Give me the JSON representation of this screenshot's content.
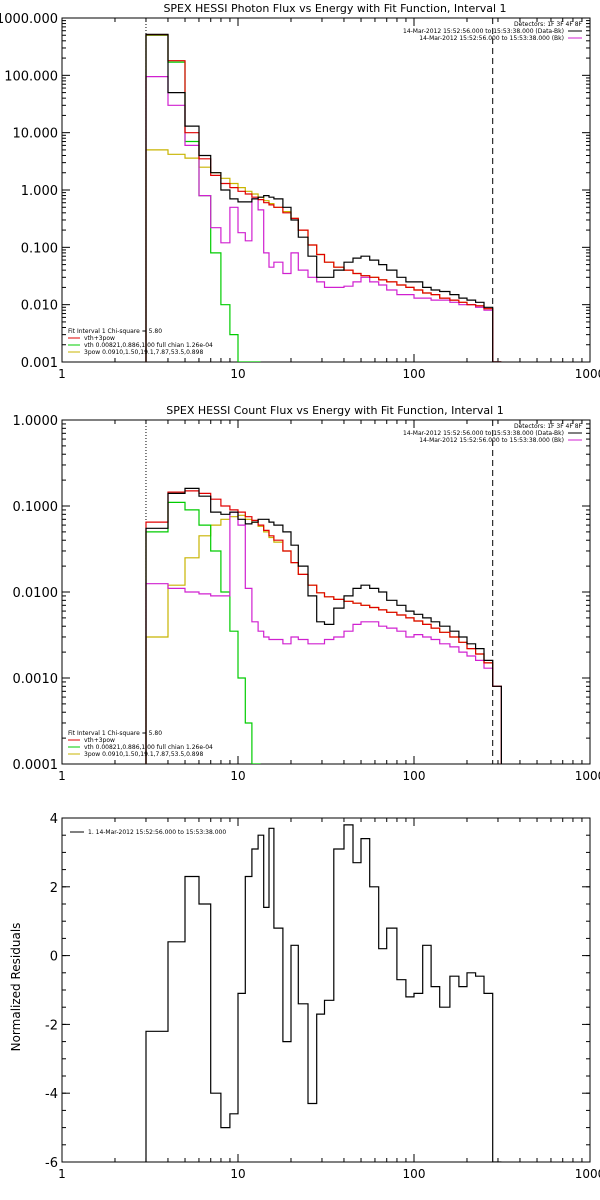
{
  "chart_data": [
    {
      "type": "line",
      "title": "SPEX HESSI Photon Flux vs Energy with Fit Function, Interval 1",
      "xlabel": "",
      "ylabel": "",
      "x_scale": "log",
      "y_scale": "log",
      "xlim": [
        1,
        1000
      ],
      "ylim": [
        0.001,
        1000
      ],
      "x_ticks": [
        "1",
        "10",
        "100",
        "1000"
      ],
      "y_ticks": [
        "0.001",
        "0.010",
        "0.100",
        "1.000",
        "10.000",
        "100.000",
        "1000.000"
      ],
      "y_tick_values": [
        0.001,
        0.01,
        0.1,
        1,
        10,
        100,
        1000
      ],
      "legend_top": [
        "Detectors: 1F 3F 4F 8F",
        "14-Mar-2012 15:52:56.000 to 15:53:38.000 (Data-Bk)",
        "14-Mar-2012 15:52:56.000 to 15:53:38.000 (Bk)"
      ],
      "legend_top_colors": [
        "",
        "#000000",
        "#d020d0"
      ],
      "legend_bottom": [
        "Fit Interval 1   Chi-square = 5.80",
        "vth+3pow",
        "vth 0.00821,0.886,1.00  full chian 1.26e-04",
        "3pow 0.0910,1.50,19.1,7.87,53.5,0.898"
      ],
      "legend_bottom_colors": [
        "",
        "#e00000",
        "#00cc00",
        "#c8b400"
      ],
      "fit_range": [
        3,
        280
      ],
      "series": [
        {
          "name": "Data-Bk",
          "color": "#000000",
          "x": [
            3,
            4,
            5,
            6,
            7,
            8,
            9,
            10,
            11,
            12,
            13,
            14,
            15,
            16,
            18,
            20,
            22,
            25,
            28,
            31,
            35,
            40,
            45,
            50,
            56,
            63,
            70,
            80,
            90,
            100,
            112,
            125,
            140,
            160,
            180,
            200,
            224,
            250,
            280
          ],
          "y": [
            520,
            50,
            13,
            4,
            2.0,
            1.0,
            0.7,
            0.62,
            0.62,
            0.7,
            0.75,
            0.8,
            0.75,
            0.7,
            0.5,
            0.3,
            0.15,
            0.07,
            0.03,
            0.03,
            0.04,
            0.055,
            0.065,
            0.07,
            0.06,
            0.05,
            0.04,
            0.03,
            0.025,
            0.025,
            0.02,
            0.018,
            0.017,
            0.015,
            0.013,
            0.012,
            0.011,
            0.009,
            0.001
          ]
        },
        {
          "name": "Bk",
          "color": "#d020d0",
          "x": [
            3,
            4,
            5,
            6,
            7,
            8,
            9,
            10,
            11,
            12,
            13,
            14,
            15,
            16,
            18,
            20,
            22,
            25,
            28,
            31,
            35,
            40,
            45,
            50,
            56,
            63,
            70,
            80,
            90,
            100,
            112,
            125,
            140,
            160,
            180,
            200,
            224,
            250,
            280
          ],
          "y": [
            95,
            30,
            6,
            0.8,
            0.22,
            0.12,
            0.5,
            0.18,
            0.13,
            0.7,
            0.45,
            0.08,
            0.045,
            0.055,
            0.035,
            0.08,
            0.04,
            0.03,
            0.025,
            0.02,
            0.02,
            0.021,
            0.025,
            0.03,
            0.025,
            0.022,
            0.018,
            0.015,
            0.015,
            0.013,
            0.013,
            0.012,
            0.012,
            0.011,
            0.01,
            0.01,
            0.009,
            0.008,
            0.001
          ]
        },
        {
          "name": "vth+3pow",
          "color": "#e00000",
          "x": [
            3,
            4,
            5,
            6,
            7,
            8,
            9,
            10,
            11,
            12,
            13,
            14,
            15,
            16,
            18,
            20,
            22,
            25,
            28,
            31,
            35,
            40,
            45,
            50,
            56,
            63,
            70,
            80,
            90,
            100,
            112,
            125,
            140,
            160,
            180,
            200,
            224,
            250,
            280
          ],
          "y": [
            510,
            180,
            10,
            3.5,
            1.8,
            1.3,
            1.1,
            0.95,
            0.85,
            0.75,
            0.68,
            0.6,
            0.55,
            0.5,
            0.4,
            0.32,
            0.2,
            0.11,
            0.075,
            0.055,
            0.045,
            0.04,
            0.035,
            0.032,
            0.03,
            0.027,
            0.025,
            0.022,
            0.02,
            0.018,
            0.016,
            0.015,
            0.013,
            0.012,
            0.011,
            0.01,
            0.0095,
            0.0085,
            0.001
          ]
        },
        {
          "name": "vth",
          "color": "#00cc00",
          "x": [
            3,
            4,
            5,
            6,
            7,
            8,
            9,
            10,
            11,
            12
          ],
          "y": [
            500,
            170,
            7,
            0.8,
            0.08,
            0.01,
            0.003,
            0.001,
            0.001,
            0.001
          ]
        },
        {
          "name": "3pow",
          "color": "#c8b400",
          "x": [
            3,
            4,
            5,
            6,
            7,
            8,
            9,
            10,
            11,
            12,
            13,
            14,
            15,
            16,
            18,
            20,
            22,
            25,
            28,
            31,
            35,
            40,
            45,
            50,
            56,
            63,
            70,
            80,
            90,
            100,
            112,
            125,
            140,
            160,
            180,
            200,
            224,
            250,
            280
          ],
          "y": [
            5,
            4.2,
            3.6,
            2.5,
            2.0,
            1.6,
            1.3,
            1.1,
            0.95,
            0.85,
            0.75,
            0.65,
            0.58,
            0.5,
            0.42,
            0.32,
            0.2,
            0.11,
            0.075,
            0.055,
            0.045,
            0.04,
            0.035,
            0.032,
            0.03,
            0.027,
            0.025,
            0.022,
            0.02,
            0.018,
            0.016,
            0.015,
            0.013,
            0.012,
            0.011,
            0.01,
            0.0095,
            0.0085,
            0.001
          ]
        }
      ]
    },
    {
      "type": "line",
      "title": "SPEX HESSI Count Flux vs Energy with Fit Function, Interval 1",
      "xlabel": "",
      "ylabel": "",
      "x_scale": "log",
      "y_scale": "log",
      "xlim": [
        1,
        1000
      ],
      "ylim": [
        0.0001,
        1
      ],
      "x_ticks": [
        "1",
        "10",
        "100",
        "1000"
      ],
      "y_ticks": [
        "0.0001",
        "0.0010",
        "0.0100",
        "0.1000",
        "1.0000"
      ],
      "y_tick_values": [
        0.0001,
        0.001,
        0.01,
        0.1,
        1
      ],
      "legend_top": [
        "Detectors: 1F 3F 4F 8F",
        "14-Mar-2012 15:52:56.000 to 15:53:38.000 (Data-Bk)",
        "14-Mar-2012 15:52:56.000 to 15:53:38.000 (Bk)"
      ],
      "legend_top_colors": [
        "",
        "#000000",
        "#d020d0"
      ],
      "legend_bottom": [
        "Fit Interval 1   Chi-square = 5.80",
        "vth+3pow",
        "vth 0.00821,0.886,1.00  full chian 1.26e-04",
        "3pow 0.0910,1.50,19.1,7.87,53.5,0.898"
      ],
      "legend_bottom_colors": [
        "",
        "#e00000",
        "#00cc00",
        "#c8b400"
      ],
      "fit_range": [
        3,
        280
      ],
      "series": [
        {
          "name": "Data-Bk",
          "color": "#000000",
          "x": [
            3,
            4,
            5,
            6,
            7,
            8,
            9,
            10,
            11,
            12,
            13,
            14,
            15,
            16,
            18,
            20,
            22,
            25,
            28,
            31,
            35,
            40,
            45,
            50,
            56,
            63,
            70,
            80,
            90,
            100,
            112,
            125,
            140,
            160,
            180,
            200,
            224,
            250,
            280
          ],
          "y": [
            0.055,
            0.14,
            0.16,
            0.13,
            0.085,
            0.08,
            0.085,
            0.07,
            0.062,
            0.065,
            0.07,
            0.07,
            0.065,
            0.06,
            0.05,
            0.035,
            0.02,
            0.009,
            0.0045,
            0.0042,
            0.0065,
            0.009,
            0.011,
            0.012,
            0.011,
            0.01,
            0.008,
            0.007,
            0.006,
            0.0055,
            0.005,
            0.0045,
            0.004,
            0.0035,
            0.003,
            0.0025,
            0.0022,
            0.0016,
            0.0008
          ]
        },
        {
          "name": "Bk",
          "color": "#d020d0",
          "x": [
            3,
            4,
            5,
            6,
            7,
            8,
            9,
            10,
            11,
            12,
            13,
            14,
            15,
            16,
            18,
            20,
            22,
            25,
            28,
            31,
            35,
            40,
            45,
            50,
            56,
            63,
            70,
            80,
            90,
            100,
            112,
            125,
            140,
            160,
            180,
            200,
            224,
            250,
            280
          ],
          "y": [
            0.0125,
            0.011,
            0.01,
            0.0095,
            0.009,
            0.009,
            0.085,
            0.06,
            0.011,
            0.0045,
            0.0035,
            0.003,
            0.0028,
            0.0028,
            0.0025,
            0.003,
            0.0028,
            0.0025,
            0.0025,
            0.0028,
            0.003,
            0.0035,
            0.0042,
            0.0045,
            0.0045,
            0.004,
            0.0038,
            0.0035,
            0.003,
            0.0032,
            0.003,
            0.0028,
            0.0025,
            0.0023,
            0.002,
            0.0018,
            0.0016,
            0.0013,
            0.0008
          ]
        },
        {
          "name": "vth+3pow",
          "color": "#e00000",
          "x": [
            3,
            4,
            5,
            6,
            7,
            8,
            9,
            10,
            11,
            12,
            13,
            14,
            15,
            16,
            18,
            20,
            22,
            25,
            28,
            31,
            35,
            40,
            45,
            50,
            56,
            63,
            70,
            80,
            90,
            100,
            112,
            125,
            140,
            160,
            180,
            200,
            224,
            250,
            280
          ],
          "y": [
            0.065,
            0.145,
            0.15,
            0.14,
            0.12,
            0.1,
            0.09,
            0.085,
            0.075,
            0.068,
            0.06,
            0.052,
            0.045,
            0.04,
            0.03,
            0.022,
            0.016,
            0.012,
            0.0098,
            0.0088,
            0.0082,
            0.0078,
            0.0074,
            0.007,
            0.0066,
            0.0062,
            0.0058,
            0.0054,
            0.005,
            0.0046,
            0.0042,
            0.0038,
            0.0034,
            0.003,
            0.0026,
            0.0022,
            0.0019,
            0.0015,
            0.0008
          ]
        },
        {
          "name": "vth",
          "color": "#00cc00",
          "x": [
            3,
            4,
            5,
            6,
            7,
            8,
            9,
            10,
            11,
            12
          ],
          "y": [
            0.05,
            0.11,
            0.09,
            0.06,
            0.03,
            0.01,
            0.0035,
            0.001,
            0.0003,
            0.0001
          ]
        },
        {
          "name": "3pow",
          "color": "#c8b400",
          "x": [
            3,
            4,
            5,
            6,
            7,
            8,
            9,
            10,
            11,
            12,
            13,
            14,
            15,
            16,
            18,
            20,
            22,
            25,
            28,
            31,
            35,
            40,
            45,
            50,
            56,
            63,
            70,
            80,
            90,
            100,
            112,
            125,
            140,
            160,
            180,
            200,
            224,
            250,
            280
          ],
          "y": [
            0.003,
            0.012,
            0.025,
            0.045,
            0.06,
            0.07,
            0.075,
            0.078,
            0.07,
            0.065,
            0.058,
            0.05,
            0.043,
            0.038,
            0.03,
            0.022,
            0.016,
            0.012,
            0.0098,
            0.0088,
            0.0082,
            0.0078,
            0.0074,
            0.007,
            0.0066,
            0.0062,
            0.0058,
            0.0054,
            0.005,
            0.0046,
            0.0042,
            0.0038,
            0.0034,
            0.003,
            0.0026,
            0.0022,
            0.0019,
            0.0015,
            0.0008
          ]
        }
      ]
    },
    {
      "type": "line",
      "title": "",
      "xlabel": "",
      "ylabel": "Normalized Residuals",
      "x_scale": "log",
      "y_scale": "linear",
      "xlim": [
        1,
        1000
      ],
      "ylim": [
        -6,
        4
      ],
      "x_ticks": [
        "1",
        "10",
        "100",
        "1000"
      ],
      "y_ticks": [
        "-6",
        "-4",
        "-2",
        "0",
        "2",
        "4"
      ],
      "y_tick_values": [
        -6,
        -4,
        -2,
        0,
        2,
        4
      ],
      "legend_top": [
        "1. 14-Mar-2012 15:52:56.000 to 15:53:38.000"
      ],
      "legend_top_colors": [
        "#000000"
      ],
      "legend_bottom": [],
      "legend_bottom_colors": [],
      "fit_range": [],
      "series": [
        {
          "name": "",
          "color": "#000000",
          "x": [
            3,
            4,
            5,
            6,
            7,
            8,
            9,
            10,
            11,
            12,
            13,
            14,
            15,
            16,
            18,
            20,
            22,
            25,
            28,
            31,
            35,
            40,
            45,
            50,
            56,
            63,
            70,
            80,
            90,
            100,
            112,
            125,
            140,
            160,
            180,
            200,
            224,
            250,
            280
          ],
          "y": [
            -2.2,
            0.4,
            2.3,
            1.5,
            -4.0,
            -5.0,
            -4.6,
            -1.1,
            2.3,
            3.1,
            3.5,
            1.4,
            3.7,
            0.8,
            -2.5,
            0.3,
            -1.4,
            -4.3,
            -1.7,
            -1.3,
            3.1,
            3.8,
            2.7,
            3.4,
            2.0,
            0.2,
            0.8,
            -0.7,
            -1.2,
            -1.1,
            0.3,
            -0.9,
            -1.5,
            -0.6,
            -0.9,
            -0.5,
            -0.6,
            -1.1,
            -6.0
          ]
        }
      ]
    }
  ]
}
